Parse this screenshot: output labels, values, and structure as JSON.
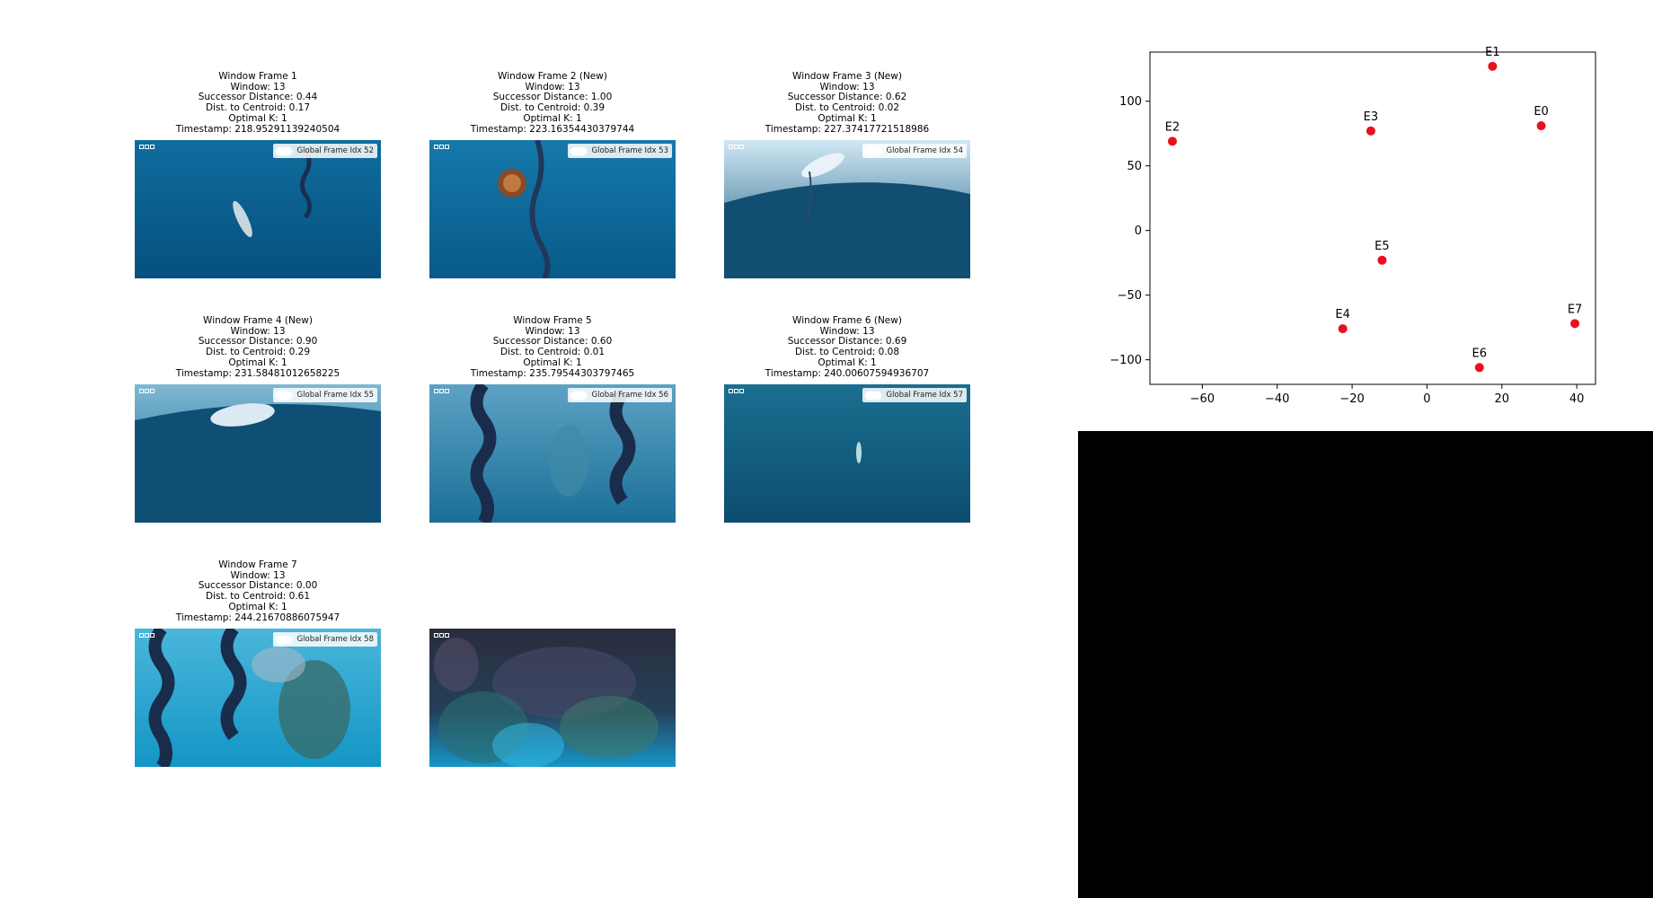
{
  "panels": [
    {
      "title": "Window Frame 1",
      "window": "Window: 13",
      "successor": "Successor Distance: 0.44",
      "centroid": "Dist. to Centroid: 0.17",
      "optimal_k": "Optimal K: 1",
      "timestamp": "Timestamp: 218.95291139240504",
      "badge": "Global Frame Idx 52"
    },
    {
      "title": "Window Frame 2 (New)",
      "window": "Window: 13",
      "successor": "Successor Distance: 1.00",
      "centroid": "Dist. to Centroid: 0.39",
      "optimal_k": "Optimal K: 1",
      "timestamp": "Timestamp: 223.16354430379744",
      "badge": "Global Frame Idx 53"
    },
    {
      "title": "Window Frame 3 (New)",
      "window": "Window: 13",
      "successor": "Successor Distance: 0.62",
      "centroid": "Dist. to Centroid: 0.02",
      "optimal_k": "Optimal K: 1",
      "timestamp": "Timestamp: 227.37417721518986",
      "badge": "Global Frame Idx 54"
    },
    {
      "title": "Window Frame 4 (New)",
      "window": "Window: 13",
      "successor": "Successor Distance: 0.90",
      "centroid": "Dist. to Centroid: 0.29",
      "optimal_k": "Optimal K: 1",
      "timestamp": "Timestamp: 231.58481012658225",
      "badge": "Global Frame Idx 55"
    },
    {
      "title": "Window Frame 5",
      "window": "Window: 13",
      "successor": "Successor Distance: 0.60",
      "centroid": "Dist. to Centroid: 0.01",
      "optimal_k": "Optimal K: 1",
      "timestamp": "Timestamp: 235.79544303797465",
      "badge": "Global Frame Idx 56"
    },
    {
      "title": "Window Frame 6 (New)",
      "window": "Window: 13",
      "successor": "Successor Distance: 0.69",
      "centroid": "Dist. to Centroid: 0.08",
      "optimal_k": "Optimal K: 1",
      "timestamp": "Timestamp: 240.00607594936707",
      "badge": "Global Frame Idx 57"
    },
    {
      "title": "Window Frame 7",
      "window": "Window: 13",
      "successor": "Successor Distance: 0.00",
      "centroid": "Dist. to Centroid: 0.61",
      "optimal_k": "Optimal K: 1",
      "timestamp": "Timestamp: 244.21670886075947",
      "badge": "Global Frame Idx 58"
    }
  ],
  "colors": {
    "point": "#e8101c",
    "deep_water": "#0d5a85",
    "light_water": "#1a86b8",
    "purple_tone": "#3d3a55",
    "cyan_tone": "#2fb8e0"
  },
  "chart_data": {
    "type": "scatter",
    "title": "",
    "xlabel": "",
    "ylabel": "",
    "xlim": [
      -74,
      45
    ],
    "ylim": [
      -119,
      138
    ],
    "xticks": [
      -60,
      -40,
      -20,
      0,
      20,
      40
    ],
    "yticks": [
      -100,
      -50,
      0,
      50,
      100
    ],
    "grid": false,
    "points": [
      {
        "label": "E0",
        "x": 30.5,
        "y": 81
      },
      {
        "label": "E1",
        "x": 17.5,
        "y": 127
      },
      {
        "label": "E2",
        "x": -68,
        "y": 69
      },
      {
        "label": "E3",
        "x": -15,
        "y": 77
      },
      {
        "label": "E4",
        "x": -22.5,
        "y": -76
      },
      {
        "label": "E5",
        "x": -12,
        "y": -23
      },
      {
        "label": "E6",
        "x": 14,
        "y": -106
      },
      {
        "label": "E7",
        "x": 39.5,
        "y": -72
      }
    ]
  }
}
